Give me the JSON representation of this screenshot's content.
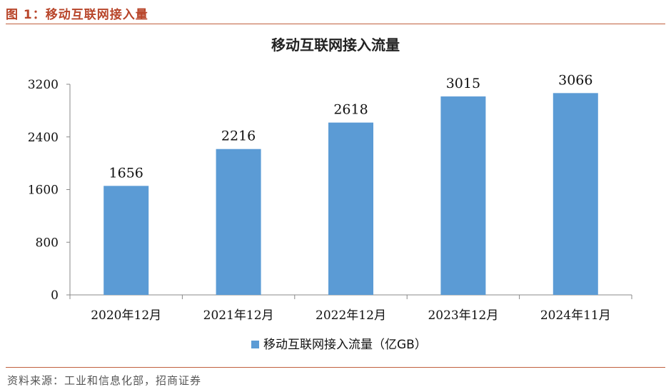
{
  "figure": {
    "caption": "图 1：移动互联网接入量",
    "source": "资料来源：工业和信息化部，招商证券"
  },
  "colors": {
    "bar": "#5b9bd5",
    "accent": "#b8452a"
  },
  "chart_data": {
    "type": "bar",
    "title": "移动互联网接入流量",
    "categories": [
      "2020年12月",
      "2021年12月",
      "2022年12月",
      "2023年12月",
      "2024年11月"
    ],
    "series": [
      {
        "name": "移动互联网接入流量（亿GB）",
        "values": [
          1656,
          2216,
          2618,
          3015,
          3066
        ]
      }
    ],
    "ylim": [
      0,
      3200
    ],
    "yticks": [
      "0",
      "800",
      "1600",
      "2400",
      "3200"
    ],
    "xlabel": "",
    "ylabel": "",
    "grid": false,
    "legend": "bottom"
  }
}
